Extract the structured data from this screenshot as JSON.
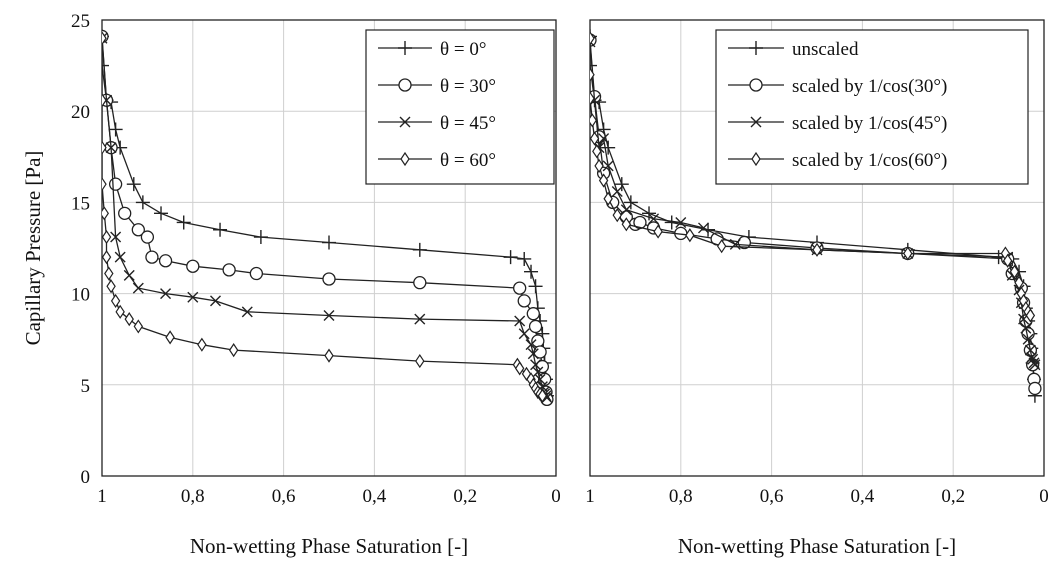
{
  "chart_data": [
    {
      "type": "line",
      "xlabel": "Non-wetting Phase Saturation [-]",
      "ylabel": "Capillary Pressure [Pa]",
      "xlim": [
        1,
        0
      ],
      "ylim": [
        0,
        25
      ],
      "x_reversed": true,
      "grid": true,
      "legend": "top-right",
      "x_ticks": [
        1,
        0.8,
        0.6,
        0.4,
        0.2,
        0
      ],
      "x_tick_labels": [
        "1",
        "0,8",
        "0,6",
        "0,4",
        "0,2",
        "0"
      ],
      "y_ticks": [
        0,
        5,
        10,
        15,
        20,
        25
      ],
      "y_tick_labels": [
        "0",
        "5",
        "10",
        "15",
        "20",
        "25"
      ],
      "series": [
        {
          "name": "θ = 0°",
          "marker": "plus",
          "x": [
            1.0,
            1.0,
            0.99,
            0.98,
            0.97,
            0.96,
            0.93,
            0.91,
            0.87,
            0.82,
            0.74,
            0.65,
            0.5,
            0.3,
            0.1,
            0.07,
            0.055,
            0.045,
            0.04,
            0.035,
            0.03,
            0.028,
            0.025,
            0.022,
            0.02
          ],
          "y": [
            24.1,
            22.5,
            20.6,
            20.5,
            19.0,
            18.0,
            16.0,
            15.0,
            14.4,
            13.9,
            13.5,
            13.1,
            12.8,
            12.4,
            12.0,
            11.9,
            11.2,
            10.4,
            9.2,
            8.5,
            7.8,
            7.0,
            6.2,
            5.3,
            4.4
          ]
        },
        {
          "name": "θ = 30°",
          "marker": "circle",
          "x": [
            1.0,
            0.99,
            0.98,
            0.97,
            0.95,
            0.92,
            0.9,
            0.89,
            0.86,
            0.8,
            0.72,
            0.66,
            0.5,
            0.3,
            0.08,
            0.07,
            0.05,
            0.045,
            0.04,
            0.035,
            0.03,
            0.025,
            0.022,
            0.02
          ],
          "y": [
            24.1,
            20.6,
            18.0,
            16.0,
            14.4,
            13.5,
            13.1,
            12.0,
            11.8,
            11.5,
            11.3,
            11.1,
            10.8,
            10.6,
            10.3,
            9.6,
            8.9,
            8.2,
            7.4,
            6.8,
            6.0,
            5.3,
            4.6,
            4.2
          ]
        },
        {
          "name": "θ = 45°",
          "marker": "cross",
          "x": [
            1.0,
            0.99,
            0.98,
            0.97,
            0.96,
            0.94,
            0.92,
            0.86,
            0.8,
            0.75,
            0.68,
            0.5,
            0.3,
            0.08,
            0.07,
            0.055,
            0.05,
            0.045,
            0.04,
            0.035,
            0.03,
            0.027,
            0.025,
            0.022,
            0.02
          ],
          "y": [
            24.0,
            20.6,
            18.0,
            13.1,
            12.0,
            11.0,
            10.3,
            10.0,
            9.8,
            9.6,
            9.0,
            8.8,
            8.6,
            8.5,
            7.8,
            7.2,
            6.7,
            6.1,
            5.7,
            5.3,
            4.9,
            4.6,
            4.5,
            4.4,
            4.3
          ]
        },
        {
          "name": "θ = 60°",
          "marker": "diamond",
          "x": [
            1.0,
            1.0,
            1.0,
            1.0,
            0.995,
            0.99,
            0.99,
            0.985,
            0.98,
            0.97,
            0.96,
            0.94,
            0.92,
            0.85,
            0.78,
            0.71,
            0.5,
            0.3,
            0.085,
            0.08,
            0.065,
            0.055,
            0.05,
            0.045,
            0.04,
            0.035,
            0.03
          ],
          "y": [
            24.0,
            20.6,
            18.0,
            16.0,
            14.4,
            13.1,
            12.0,
            11.1,
            10.4,
            9.6,
            9.0,
            8.6,
            8.2,
            7.6,
            7.2,
            6.9,
            6.6,
            6.3,
            6.1,
            5.9,
            5.6,
            5.3,
            5.0,
            4.8,
            4.6,
            4.5,
            4.4
          ]
        }
      ]
    },
    {
      "type": "line",
      "xlabel": "Non-wetting Phase Saturation [-]",
      "ylabel": "",
      "xlim": [
        1,
        0
      ],
      "ylim": [
        0,
        25
      ],
      "x_reversed": true,
      "grid": true,
      "legend": "top-right",
      "x_ticks": [
        1,
        0.8,
        0.6,
        0.4,
        0.2,
        0
      ],
      "x_tick_labels": [
        "1",
        "0,8",
        "0,6",
        "0,4",
        "0,2",
        "0"
      ],
      "y_ticks": [
        0,
        5,
        10,
        15,
        20,
        25
      ],
      "y_tick_labels": [],
      "series": [
        {
          "name": "unscaled",
          "marker": "plus",
          "x": [
            1.0,
            1.0,
            0.99,
            0.98,
            0.97,
            0.96,
            0.93,
            0.91,
            0.87,
            0.82,
            0.74,
            0.65,
            0.5,
            0.3,
            0.1,
            0.07,
            0.055,
            0.045,
            0.04,
            0.035,
            0.03,
            0.028,
            0.025,
            0.022,
            0.02
          ],
          "y": [
            24.1,
            22.5,
            20.6,
            20.5,
            19.0,
            18.0,
            16.0,
            15.0,
            14.4,
            13.9,
            13.5,
            13.1,
            12.8,
            12.4,
            12.0,
            11.9,
            11.2,
            10.4,
            9.2,
            8.5,
            7.8,
            7.0,
            6.2,
            5.3,
            4.4
          ]
        },
        {
          "name": "scaled by 1/cos(30°)",
          "marker": "circle",
          "x": [
            1.0,
            0.99,
            0.98,
            0.97,
            0.95,
            0.92,
            0.9,
            0.89,
            0.86,
            0.8,
            0.72,
            0.66,
            0.5,
            0.3,
            0.08,
            0.07,
            0.05,
            0.045,
            0.04,
            0.035,
            0.03,
            0.025,
            0.022,
            0.02
          ],
          "y": [
            23.9,
            20.8,
            18.6,
            16.6,
            15.0,
            14.2,
            13.8,
            13.9,
            13.6,
            13.3,
            13.0,
            12.8,
            12.5,
            12.2,
            11.9,
            11.1,
            10.3,
            9.5,
            8.5,
            7.8,
            6.9,
            6.1,
            5.3,
            4.8
          ]
        },
        {
          "name": "scaled by 1/cos(45°)",
          "marker": "cross",
          "x": [
            1.0,
            0.99,
            0.98,
            0.97,
            0.96,
            0.94,
            0.92,
            0.86,
            0.8,
            0.75,
            0.68,
            0.5,
            0.3,
            0.08,
            0.07,
            0.055,
            0.05,
            0.045,
            0.04,
            0.035,
            0.03,
            0.027,
            0.025,
            0.022,
            0.02
          ],
          "y": [
            23.8,
            20.6,
            18.0,
            18.5,
            17.0,
            15.6,
            14.6,
            14.1,
            13.9,
            13.6,
            12.7,
            12.4,
            12.2,
            12.0,
            11.0,
            10.2,
            9.5,
            8.6,
            8.1,
            7.5,
            6.9,
            6.5,
            6.4,
            6.2,
            6.1
          ]
        },
        {
          "name": "scaled by 1/cos(60°)",
          "marker": "diamond",
          "x": [
            1.0,
            1.0,
            1.0,
            0.995,
            0.99,
            0.985,
            0.98,
            0.97,
            0.96,
            0.94,
            0.92,
            0.85,
            0.78,
            0.71,
            0.5,
            0.3,
            0.085,
            0.08,
            0.065,
            0.055,
            0.05,
            0.045,
            0.04,
            0.035,
            0.03
          ],
          "y": [
            24.0,
            22.0,
            20.7,
            19.5,
            18.5,
            17.8,
            17.0,
            16.2,
            15.2,
            14.3,
            13.8,
            13.4,
            13.2,
            12.6,
            12.4,
            12.2,
            12.2,
            11.8,
            11.2,
            10.6,
            10.0,
            9.6,
            9.2,
            9.0,
            8.8
          ]
        }
      ]
    }
  ]
}
